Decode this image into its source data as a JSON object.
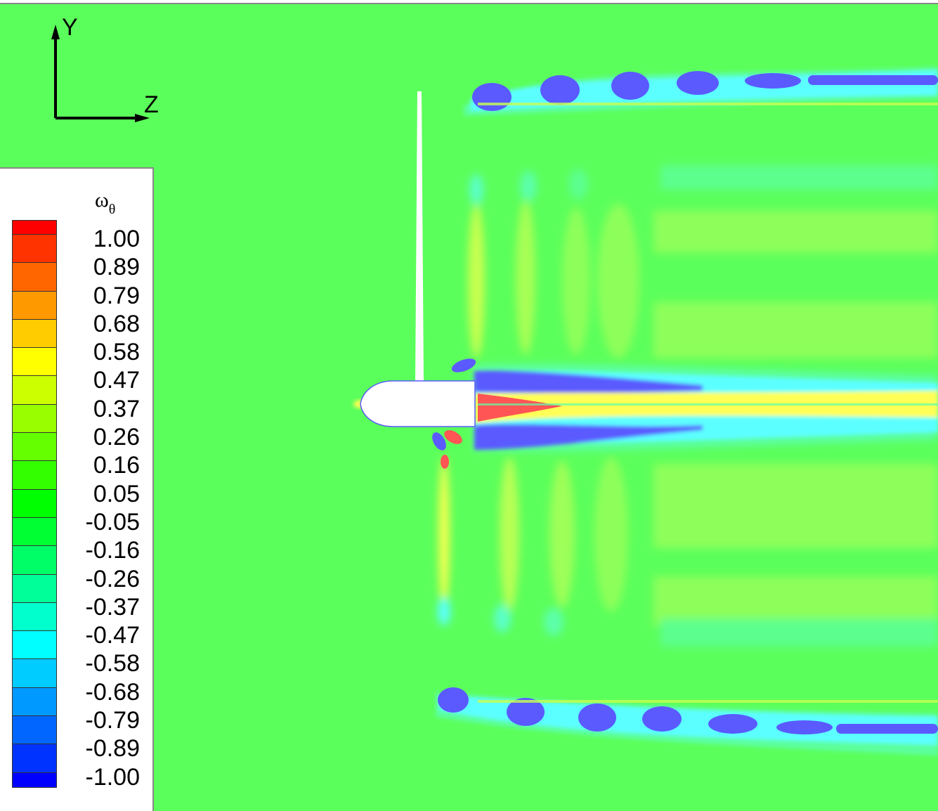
{
  "chart_data": {
    "type": "heatmap",
    "title": "",
    "variable": "ω_θ",
    "legend": {
      "title": "ωθ",
      "position": "left",
      "levels": [
        "1.00",
        "0.89",
        "0.79",
        "0.68",
        "0.58",
        "0.47",
        "0.37",
        "0.26",
        "0.16",
        "0.05",
        "-0.05",
        "-0.16",
        "-0.26",
        "-0.37",
        "-0.47",
        "-0.58",
        "-0.68",
        "-0.79",
        "-0.89",
        "-1.00"
      ],
      "colors": [
        "#ff0000",
        "#ff3300",
        "#ff6600",
        "#ff9900",
        "#ffcc00",
        "#ffff00",
        "#ccff00",
        "#99ff00",
        "#66ff00",
        "#33ff00",
        "#00ff00",
        "#00ff33",
        "#00ff66",
        "#00ff99",
        "#00ffcc",
        "#00ffff",
        "#00ccff",
        "#0099ff",
        "#0066ff",
        "#0033ff",
        "#0000ff"
      ],
      "range": [
        -1.0,
        1.0
      ]
    },
    "axes": {
      "horizontal": "Z",
      "vertical": "Y"
    },
    "description": "Tangential vorticity contours around a propeller-hub body; tip vortices shed from blade tips at top and bottom convect downstream in +Z; hub vortex wake along centerline.",
    "features": [
      {
        "name": "upper-tip-vortices",
        "sign": "negative",
        "approx_value": -1.0,
        "count_visible": 6
      },
      {
        "name": "lower-tip-vortices",
        "sign": "negative",
        "approx_value": -1.0,
        "count_visible": 6
      },
      {
        "name": "hub-wake-core",
        "sign": "positive",
        "approx_value": 0.5
      },
      {
        "name": "hub-wake-shear-layers",
        "sign": "negative",
        "approx_value": -0.6
      },
      {
        "name": "blade-wake-sheets",
        "sign": "positive",
        "approx_value": 0.3
      }
    ]
  },
  "axis_triad": {
    "y_label": "Y",
    "z_label": "Z"
  }
}
